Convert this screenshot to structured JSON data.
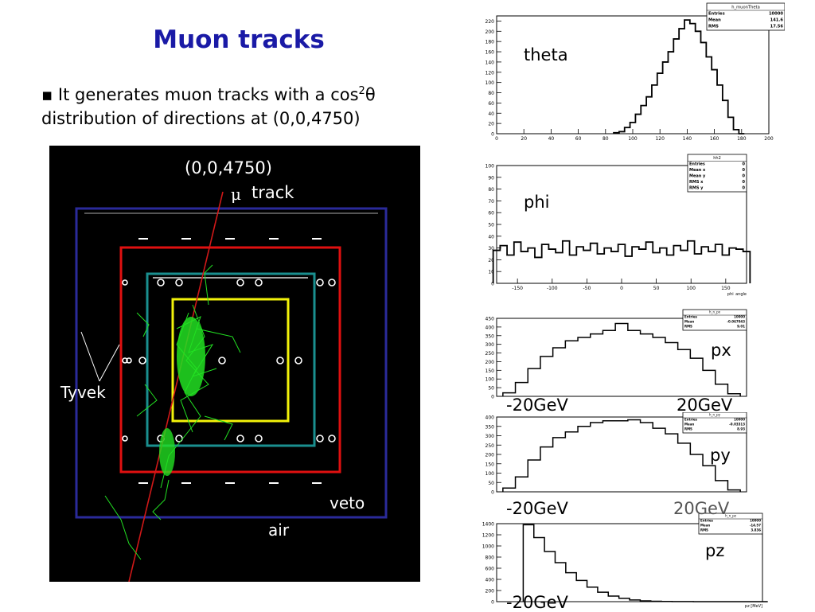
{
  "slide": {
    "title": "Muon tracks",
    "bullet_marker": "▪",
    "bullet_pre": "It generates muon tracks with a cos",
    "bullet_sup": "2",
    "bullet_theta": "θ",
    "bullet_line2": "distribution of directions at (0,0,4750)"
  },
  "simulation": {
    "labels": {
      "origin": "(0,0,4750)",
      "mu": "μ",
      "track": "track",
      "tyvek": "Tyvek",
      "veto": "veto",
      "air": "air"
    },
    "colors": {
      "background": "#000000",
      "outer_box": "#2a2a9a",
      "veto_box": "#e01010",
      "inner_box": "#1a8f8f",
      "core_box": "#f2f20a",
      "track": "#d01818",
      "shower": "#22e022"
    }
  },
  "chart_data": [
    {
      "type": "line",
      "name_label": "theta",
      "stats_title": "h_muonTheta",
      "stats": [
        [
          "Entries",
          "10000"
        ],
        [
          "Mean",
          "141.6"
        ],
        [
          "RMS",
          "17.56"
        ]
      ],
      "xlim": [
        0,
        200
      ],
      "ylim": [
        0,
        230
      ],
      "xticks": [
        0,
        20,
        40,
        60,
        80,
        100,
        120,
        140,
        160,
        180,
        200
      ],
      "yticks": [
        0,
        20,
        40,
        60,
        80,
        100,
        120,
        140,
        160,
        180,
        200,
        220
      ],
      "x": [
        88,
        92,
        96,
        100,
        104,
        108,
        112,
        116,
        120,
        124,
        128,
        132,
        136,
        140,
        144,
        148,
        152,
        156,
        160,
        164,
        168,
        172,
        176,
        180
      ],
      "y": [
        2,
        4,
        12,
        22,
        38,
        55,
        72,
        95,
        118,
        140,
        160,
        185,
        205,
        222,
        215,
        200,
        178,
        150,
        125,
        95,
        65,
        32,
        8,
        0
      ],
      "line_color": "#000000"
    },
    {
      "type": "line",
      "name_label": "phi",
      "xlabel": "phi_angle",
      "stats_title": "hh2",
      "stats": [
        [
          "Entries",
          "0"
        ],
        [
          "Mean x",
          "0"
        ],
        [
          "Mean y",
          "0"
        ],
        [
          "RMS x",
          "0"
        ],
        [
          "RMS y",
          "0"
        ]
      ],
      "xlim": [
        -180,
        180
      ],
      "ylim": [
        0,
        100
      ],
      "xticks": [
        -150,
        -100,
        -50,
        0,
        50,
        100,
        150
      ],
      "yticks": [
        0,
        10,
        20,
        30,
        40,
        50,
        60,
        70,
        80,
        90,
        100
      ],
      "x": [
        -180,
        -170,
        -160,
        -150,
        -140,
        -130,
        -120,
        -110,
        -100,
        -90,
        -80,
        -70,
        -60,
        -50,
        -40,
        -30,
        -20,
        -10,
        0,
        10,
        20,
        30,
        40,
        50,
        60,
        70,
        80,
        90,
        100,
        110,
        120,
        130,
        140,
        150,
        160,
        170,
        180
      ],
      "y": [
        28,
        32,
        24,
        35,
        27,
        30,
        22,
        33,
        29,
        26,
        36,
        24,
        31,
        28,
        34,
        25,
        30,
        27,
        33,
        23,
        31,
        29,
        35,
        26,
        30,
        24,
        32,
        28,
        36,
        25,
        31,
        27,
        33,
        24,
        30,
        29,
        27
      ],
      "line_color": "#000000"
    },
    {
      "type": "line",
      "name_label": "px",
      "stats_title": "h_n_px",
      "stats": [
        [
          "Entries",
          "10000"
        ],
        [
          "Mean",
          "-0.067043"
        ],
        [
          "RMS",
          "9.01"
        ]
      ],
      "xlim": [
        -20,
        20
      ],
      "ylim": [
        0,
        450
      ],
      "yticks": [
        0,
        50,
        100,
        150,
        200,
        250,
        300,
        350,
        400,
        450
      ],
      "x": [
        -18,
        -16,
        -14,
        -12,
        -10,
        -8,
        -6,
        -4,
        -2,
        0,
        2,
        4,
        6,
        8,
        10,
        12,
        14,
        16,
        18
      ],
      "y": [
        20,
        80,
        160,
        230,
        280,
        320,
        340,
        360,
        380,
        420,
        380,
        360,
        340,
        310,
        270,
        220,
        150,
        70,
        15
      ],
      "left_label": "-20GeV",
      "right_label": "20GeV",
      "line_color": "#000000"
    },
    {
      "type": "line",
      "name_label": "py",
      "stats_title": "h_n_py",
      "stats": [
        [
          "Entries",
          "10000"
        ],
        [
          "Mean",
          "-0.03313"
        ],
        [
          "RMS",
          "8.93"
        ]
      ],
      "xlim": [
        -20,
        20
      ],
      "ylim": [
        0,
        400
      ],
      "yticks": [
        0,
        50,
        100,
        150,
        200,
        250,
        300,
        350,
        400
      ],
      "x": [
        -18,
        -16,
        -14,
        -12,
        -10,
        -8,
        -6,
        -4,
        -2,
        0,
        2,
        4,
        6,
        8,
        10,
        12,
        14,
        16,
        18
      ],
      "y": [
        20,
        80,
        170,
        240,
        290,
        320,
        350,
        370,
        380,
        380,
        385,
        370,
        340,
        310,
        260,
        200,
        140,
        60,
        10
      ],
      "left_label": "-20GeV",
      "right_label": "20GeV",
      "line_color": "#000000"
    },
    {
      "type": "line",
      "name_label": "pz",
      "xlabel": "pz [MeV]",
      "stats_title": "h_n_pz",
      "stats": [
        [
          "Entries",
          "10000"
        ],
        [
          "Mean",
          "-14.57"
        ],
        [
          "RMS",
          "3.836"
        ]
      ],
      "xlim": [
        -20,
        5
      ],
      "ylim": [
        0,
        1400
      ],
      "yticks": [
        0,
        200,
        400,
        600,
        800,
        1000,
        1200,
        1400
      ],
      "x": [
        -17,
        -16,
        -15,
        -14,
        -13,
        -12,
        -11,
        -10,
        -9,
        -8,
        -7,
        -6,
        -5,
        -4,
        -3,
        -2,
        -1,
        0,
        1,
        2,
        3,
        4,
        5
      ],
      "y": [
        1380,
        1150,
        900,
        700,
        520,
        380,
        260,
        170,
        100,
        60,
        30,
        15,
        8,
        4,
        2,
        1,
        0,
        0,
        0,
        0,
        0,
        0,
        0
      ],
      "left_label": "-20GeV",
      "line_color": "#000000"
    }
  ]
}
